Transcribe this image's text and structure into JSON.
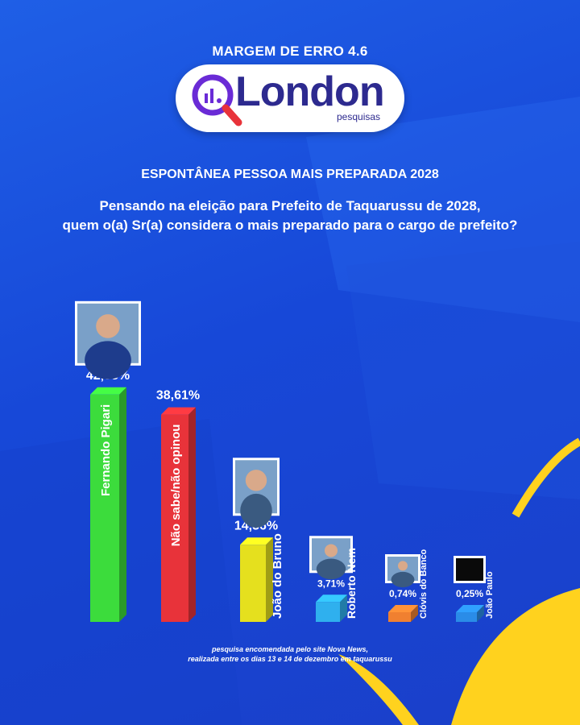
{
  "header": {
    "margin_of_error": "MARGEM DE ERRO 4.6",
    "logo_text": "London",
    "logo_subtext": "pesquisas"
  },
  "survey": {
    "title": "ESPONTÂNEA PESSOA MAIS PREPARADA 2028",
    "question_line1": "Pensando na eleição para Prefeito de Taquarussu de 2028,",
    "question_line2": "quem o(a) Sr(a) considera o mais preparado para o cargo de prefeito?"
  },
  "chart_data": {
    "type": "bar",
    "title": "ESPONTÂNEA PESSOA MAIS PREPARADA 2028",
    "categories": [
      "Fernando Pigari",
      "Não sabe/não opinou",
      "João do Bruno",
      "Roberto Nem",
      "Clóvis do Banco",
      "João Paulo"
    ],
    "values": [
      42.33,
      38.61,
      14.36,
      3.71,
      0.74,
      0.25
    ],
    "value_labels": [
      "42,33%",
      "38,61%",
      "14,36%",
      "3,71%",
      "0,74%",
      "0,25%"
    ],
    "colors": [
      "#3cdc3c",
      "#e8333a",
      "#e5e01e",
      "#2fb0ee",
      "#f08030",
      "#2a8ce8"
    ],
    "has_photo": [
      true,
      false,
      true,
      true,
      true,
      true
    ],
    "ylim": [
      0,
      45
    ],
    "grid": false,
    "legend": "none"
  },
  "footer": {
    "note_line1": "pesquisa encomendada pelo site Nova News,",
    "note_line2": "realizada entre os dias 13 e 14 de dezembro em taquarussu"
  }
}
